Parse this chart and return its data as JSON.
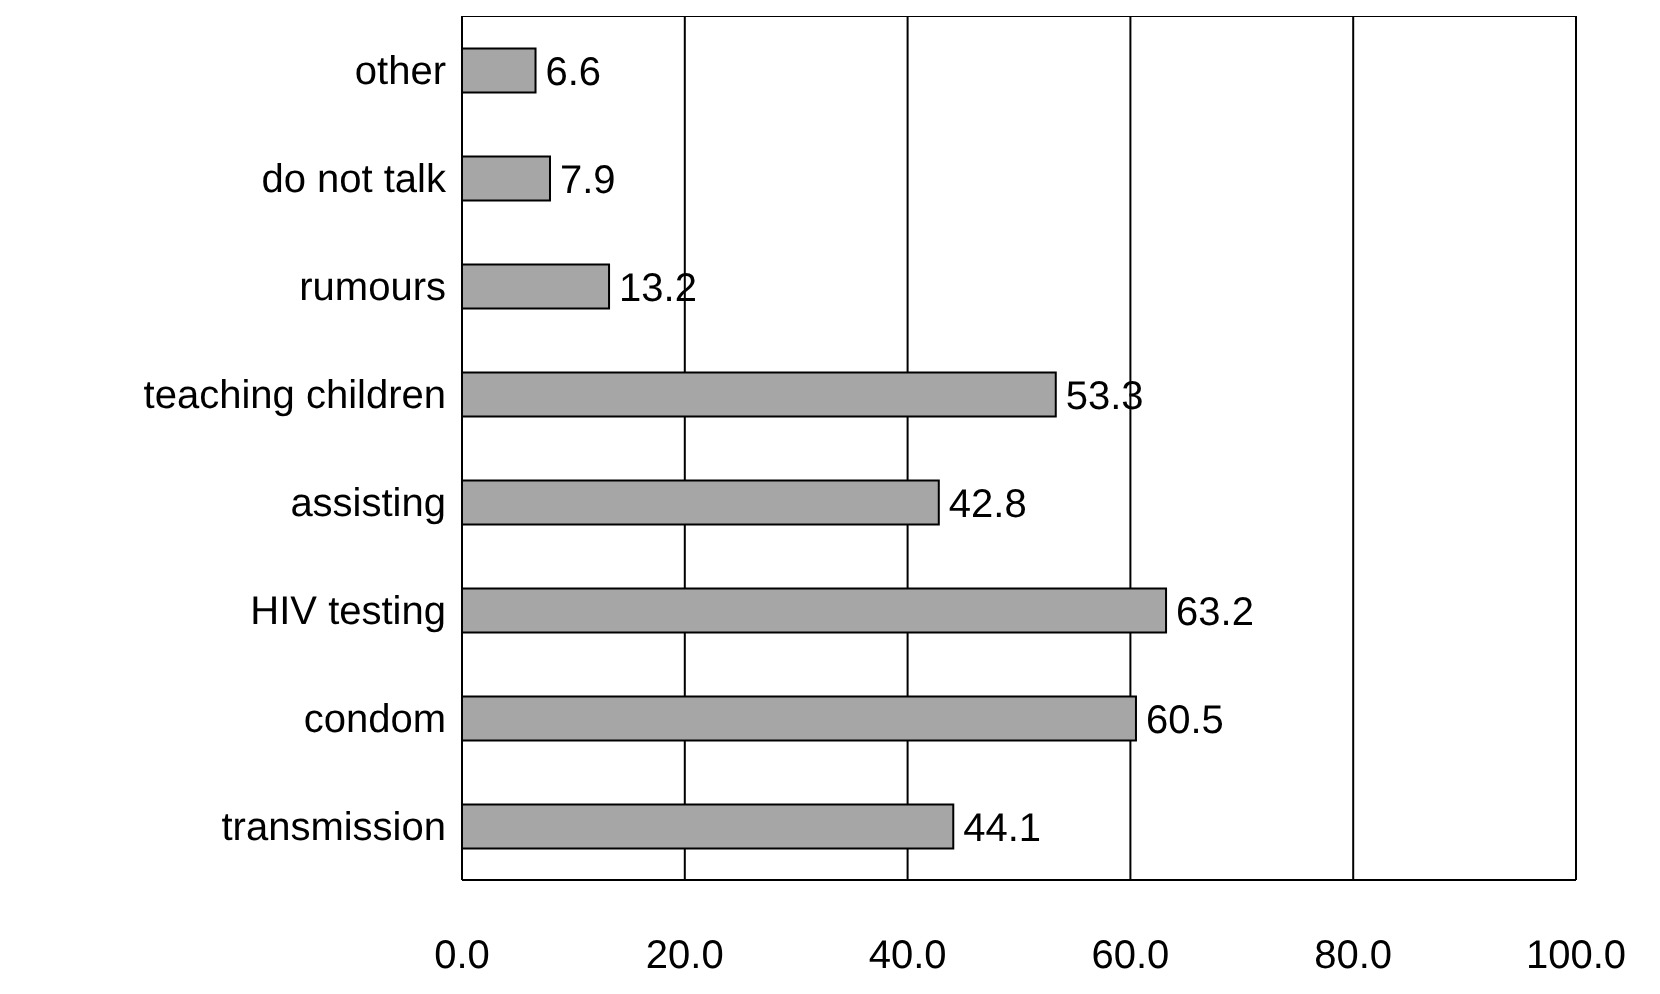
{
  "chart_data": {
    "type": "bar",
    "orientation": "horizontal",
    "categories": [
      "other",
      "do not talk",
      "rumours",
      "teaching children",
      "assisting",
      "HIV testing",
      "condom",
      "transmission"
    ],
    "values": [
      6.6,
      7.9,
      13.2,
      53.3,
      42.8,
      63.2,
      60.5,
      44.1
    ],
    "color": "#a6a6a6",
    "xlim": [
      0,
      100
    ],
    "xticks": [
      {
        "value": 0,
        "label": "0.0"
      },
      {
        "value": 20,
        "label": "20.0"
      },
      {
        "value": 40,
        "label": "40.0"
      },
      {
        "value": 60,
        "label": "60.0"
      },
      {
        "value": 80,
        "label": "80.0"
      },
      {
        "value": 100,
        "label": "100.0"
      }
    ],
    "grid": "x",
    "data_labels": true
  }
}
